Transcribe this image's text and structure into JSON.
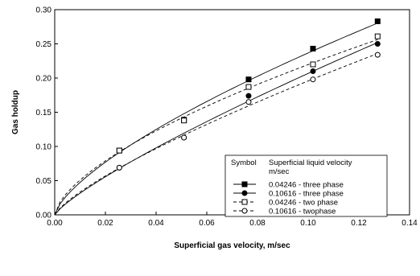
{
  "chart_data": {
    "type": "line",
    "title": "",
    "xlabel": "Superficial gas velocity, m/sec",
    "ylabel": "Gas holdup",
    "xlim": [
      0.0,
      0.14
    ],
    "ylim": [
      0.0,
      0.3
    ],
    "x_ticks": [
      "0.00",
      "0.02",
      "0.04",
      "0.06",
      "0.08",
      "0.10",
      "0.12",
      "0.14"
    ],
    "y_ticks": [
      "0.00",
      "0.05",
      "0.10",
      "0.15",
      "0.20",
      "0.25",
      "0.30"
    ],
    "grid": false,
    "legend": {
      "placement": "bottom-right",
      "header_symbol": "Symbol",
      "header_title": "Superficial liquid velocity",
      "header_unit": "m/sec"
    },
    "series": [
      {
        "name": "0.04246 - three phase",
        "marker": "square-filled",
        "line": "solid",
        "x": [
          0.0255,
          0.051,
          0.0765,
          0.1019,
          0.1274
        ],
        "y": [
          0.094,
          0.139,
          0.198,
          0.243,
          0.283
        ]
      },
      {
        "name": "0.10616 - three phase",
        "marker": "circle-filled",
        "line": "solid",
        "x": [
          0.0255,
          0.051,
          0.0765,
          0.1019,
          0.1274
        ],
        "y": [
          0.069,
          0.113,
          0.174,
          0.21,
          0.25
        ]
      },
      {
        "name": "0.04246 - two phase",
        "marker": "square-open",
        "line": "dashed",
        "x": [
          0.0255,
          0.051,
          0.0765,
          0.1019,
          0.1274
        ],
        "y": [
          0.094,
          0.138,
          0.187,
          0.22,
          0.261
        ]
      },
      {
        "name": "0.10616 - twophase",
        "marker": "circle-open",
        "line": "dashed",
        "x": [
          0.0255,
          0.051,
          0.0765,
          0.1019,
          0.1274
        ],
        "y": [
          0.069,
          0.113,
          0.165,
          0.198,
          0.234
        ]
      }
    ]
  }
}
